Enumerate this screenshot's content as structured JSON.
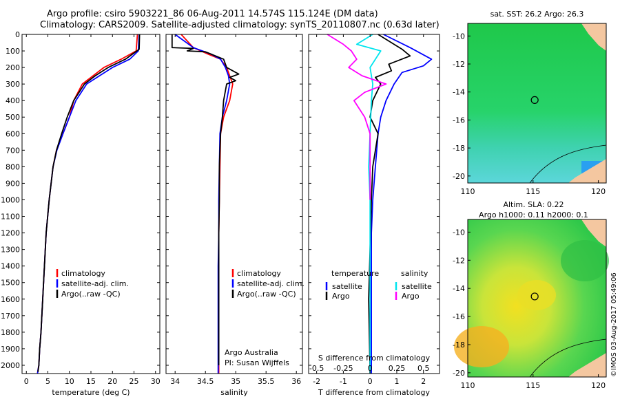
{
  "header": {
    "line1": "Argo profile: csiro 5903221_86 06-Aug-2011 14.574S 115.124E (DM data)",
    "line2": "Climatology: CARS2009. Satellite-adjusted climatology: synTS_20110807.nc (0.63d later)"
  },
  "colors": {
    "climatology": "#ff0000",
    "satellite": "#0000ff",
    "argo": "#000000",
    "sal_satellite": "#00e5ee",
    "sal_argo": "#ff00ff",
    "land": "#f4c7a0",
    "marker": "#000000"
  },
  "chart_data": [
    {
      "id": "temperature",
      "type": "line",
      "xlabel": "temperature (deg C)",
      "ylabel": "",
      "xlim": [
        -1,
        31
      ],
      "ylim": [
        2050,
        0
      ],
      "xticks": [
        0,
        5,
        10,
        15,
        20,
        25,
        30
      ],
      "xtick_labels": [
        "0",
        "5",
        "10",
        "15",
        "20",
        "25",
        "30"
      ],
      "yticks": [
        0,
        100,
        200,
        300,
        400,
        500,
        600,
        700,
        800,
        900,
        1000,
        1100,
        1200,
        1300,
        1400,
        1500,
        1600,
        1700,
        1800,
        1900,
        2000
      ],
      "ytick_labels": [
        "0",
        "100",
        "200",
        "300",
        "400",
        "500",
        "600",
        "700",
        "800",
        "900",
        "1000",
        "1100",
        "1200",
        "1300",
        "1400",
        "1500",
        "1600",
        "1700",
        "1800",
        "1900",
        "2000"
      ],
      "legend": [
        "climatology",
        "satellite-adj. clim.",
        "Argo(..raw -QC)"
      ],
      "series": [
        {
          "name": "climatology",
          "color": "#ff0000",
          "x": [
            25.8,
            25.5,
            22,
            18,
            15.5,
            13,
            11,
            10,
            8.5,
            7,
            6.2,
            5.3,
            4.6,
            4.2,
            3.8,
            3.4,
            3.1,
            2.9,
            2.7,
            2.6
          ],
          "y": [
            0,
            100,
            150,
            200,
            250,
            300,
            400,
            500,
            600,
            700,
            800,
            1000,
            1200,
            1400,
            1600,
            1800,
            1900,
            2000,
            2030,
            2050
          ]
        },
        {
          "name": "satellite-adj. clim.",
          "color": "#0000ff",
          "x": [
            26.2,
            26,
            24,
            20,
            17,
            14,
            11.5,
            10,
            8.5,
            7.1,
            6.2,
            5.3,
            4.6,
            4.2,
            3.8,
            3.4,
            3.1,
            2.9,
            2.7,
            2.6
          ],
          "y": [
            0,
            100,
            150,
            200,
            250,
            300,
            400,
            500,
            600,
            700,
            800,
            1000,
            1200,
            1400,
            1600,
            1800,
            1900,
            2000,
            2030,
            2050
          ]
        },
        {
          "name": "Argo(..raw -QC)",
          "color": "#000000",
          "x": [
            26.3,
            26.2,
            23,
            19,
            16,
            13.5,
            11,
            9.5,
            8.2,
            7,
            6.2,
            5.3,
            4.6,
            4.2,
            3.8,
            3.4,
            3.1,
            2.9,
            2.7
          ],
          "y": [
            0,
            90,
            150,
            200,
            250,
            300,
            400,
            500,
            600,
            700,
            800,
            1000,
            1200,
            1400,
            1600,
            1800,
            1900,
            2000,
            2040
          ]
        }
      ]
    },
    {
      "id": "salinity",
      "type": "line",
      "xlabel": "salinity",
      "xlim": [
        33.85,
        36.1
      ],
      "ylim": [
        2050,
        0
      ],
      "xticks": [
        34,
        34.5,
        35,
        35.5,
        36
      ],
      "xtick_labels": [
        "34",
        "34.5",
        "35",
        "35.5",
        "36"
      ],
      "legend": [
        "climatology",
        "satellite-adj. clim.",
        "Argo(..raw -QC)"
      ],
      "annotation": [
        "Argo Australia",
        "PI: Susan Wijffels"
      ],
      "series": [
        {
          "name": "climatology",
          "color": "#ff0000",
          "x": [
            34.1,
            34.3,
            34.55,
            34.75,
            34.85,
            34.9,
            34.95,
            34.9,
            34.8,
            34.75,
            34.74,
            34.73,
            34.72,
            34.72,
            34.72,
            34.72,
            34.72,
            34.72
          ],
          "y": [
            0,
            80,
            120,
            150,
            200,
            250,
            300,
            400,
            500,
            600,
            800,
            1000,
            1200,
            1400,
            1600,
            1800,
            2000,
            2050
          ]
        },
        {
          "name": "satellite-adj. clim.",
          "color": "#0000ff",
          "x": [
            34.0,
            34.3,
            34.6,
            34.75,
            34.83,
            34.88,
            34.9,
            34.85,
            34.78,
            34.74,
            34.73,
            34.72,
            34.72,
            34.71,
            34.71,
            34.71,
            34.71,
            34.71
          ],
          "y": [
            0,
            80,
            120,
            150,
            200,
            250,
            300,
            400,
            500,
            600,
            800,
            1000,
            1200,
            1400,
            1600,
            1800,
            2000,
            2050
          ]
        },
        {
          "name": "Argo(..raw -QC)",
          "color": "#000000",
          "x": [
            33.95,
            33.95,
            34.3,
            34.2,
            34.5,
            34.8,
            34.85,
            35.05,
            34.9,
            35.0,
            34.85,
            34.8,
            34.78,
            34.75,
            34.73,
            34.73,
            34.72,
            34.72,
            34.72,
            34.72,
            34.72
          ],
          "y": [
            0,
            80,
            85,
            100,
            105,
            150,
            200,
            240,
            260,
            280,
            300,
            400,
            500,
            600,
            800,
            1000,
            1200,
            1400,
            1600,
            1800,
            2000
          ]
        }
      ]
    },
    {
      "id": "differences",
      "type": "line",
      "xlabel": "T difference from climatology",
      "xlabel_top": "S difference from climatology",
      "xlim": [
        -2.3,
        2.6
      ],
      "ylim": [
        2050,
        0
      ],
      "xticks": [
        -2,
        -1,
        0,
        1,
        2
      ],
      "xtick_labels": [
        "-2",
        "-1",
        "0",
        "1",
        "2"
      ],
      "xticks_top_labels": [
        "-0.5",
        "-0.25",
        "0",
        "0.25",
        "0.5"
      ],
      "xticks_top_pos": [
        -2,
        -1,
        0,
        1,
        2
      ],
      "legend_temperature_title": "temperature",
      "legend_salinity_title": "salinity",
      "legend_satellite": "satellite",
      "legend_argo": "Argo",
      "series": [
        {
          "name": "T satellite",
          "color": "#0000ff",
          "x": [
            0.5,
            1.5,
            2.3,
            2.0,
            1.2,
            0.9,
            0.6,
            0.4,
            0.3,
            0.2,
            0.1,
            0.05,
            0.05,
            0.05,
            0.05
          ],
          "y": [
            0,
            80,
            150,
            190,
            230,
            300,
            400,
            500,
            600,
            800,
            1000,
            1200,
            1500,
            1800,
            2050
          ]
        },
        {
          "name": "T Argo",
          "color": "#000000",
          "x": [
            0.3,
            1.2,
            1.5,
            0.7,
            0.8,
            0.2,
            0.4,
            0.1,
            0.0,
            0.3,
            0.1,
            0.05,
            0.0,
            -0.05,
            0.0
          ],
          "y": [
            0,
            90,
            130,
            180,
            220,
            260,
            300,
            400,
            500,
            600,
            800,
            1000,
            1300,
            1600,
            2050
          ]
        },
        {
          "name": "S satellite",
          "color": "#00e5ee",
          "x": [
            0.1,
            -0.5,
            0.4,
            0.2,
            0.0,
            0.1,
            0.05,
            0.0,
            -0.05,
            0.0,
            0.0,
            0.0,
            0.0
          ],
          "y": [
            0,
            60,
            100,
            150,
            200,
            300,
            400,
            600,
            800,
            1000,
            1400,
            1800,
            2050
          ]
        },
        {
          "name": "S Argo",
          "color": "#ff00ff",
          "x": [
            -1.6,
            -1.0,
            -0.7,
            -0.5,
            -0.8,
            -0.3,
            0.6,
            -0.2,
            -0.6,
            -0.2,
            0.0,
            0.0,
            0.0
          ],
          "y": [
            0,
            60,
            100,
            150,
            200,
            250,
            300,
            350,
            400,
            500,
            600,
            800,
            1000
          ]
        }
      ]
    }
  ],
  "maps": [
    {
      "id": "sst-map",
      "title": "sat. SST: 26.2 Argo: 26.3",
      "xticks": [
        "110",
        "115",
        "120"
      ],
      "yticks": [
        "-10",
        "-12",
        "-14",
        "-16",
        "-18",
        "-20"
      ],
      "xlim": [
        110,
        120.6
      ],
      "ylim": [
        -20.5,
        -9.1
      ],
      "float_position": {
        "lon": 115.124,
        "lat": -14.574
      }
    },
    {
      "id": "sla-map",
      "title_lines": [
        "Altim. SLA: 0.22",
        "Argo h1000: 0.11 h2000: 0.1"
      ],
      "xticks": [
        "110",
        "115",
        "120"
      ],
      "yticks": [
        "-10",
        "-12",
        "-14",
        "-16",
        "-18",
        "-20"
      ],
      "xlim": [
        110,
        120.6
      ],
      "ylim": [
        -20.3,
        -9.1
      ],
      "float_position": {
        "lon": 115.124,
        "lat": -14.574
      }
    }
  ],
  "footer": {
    "timestamp": "©IMOS 03-Aug-2017 05:49:06"
  }
}
